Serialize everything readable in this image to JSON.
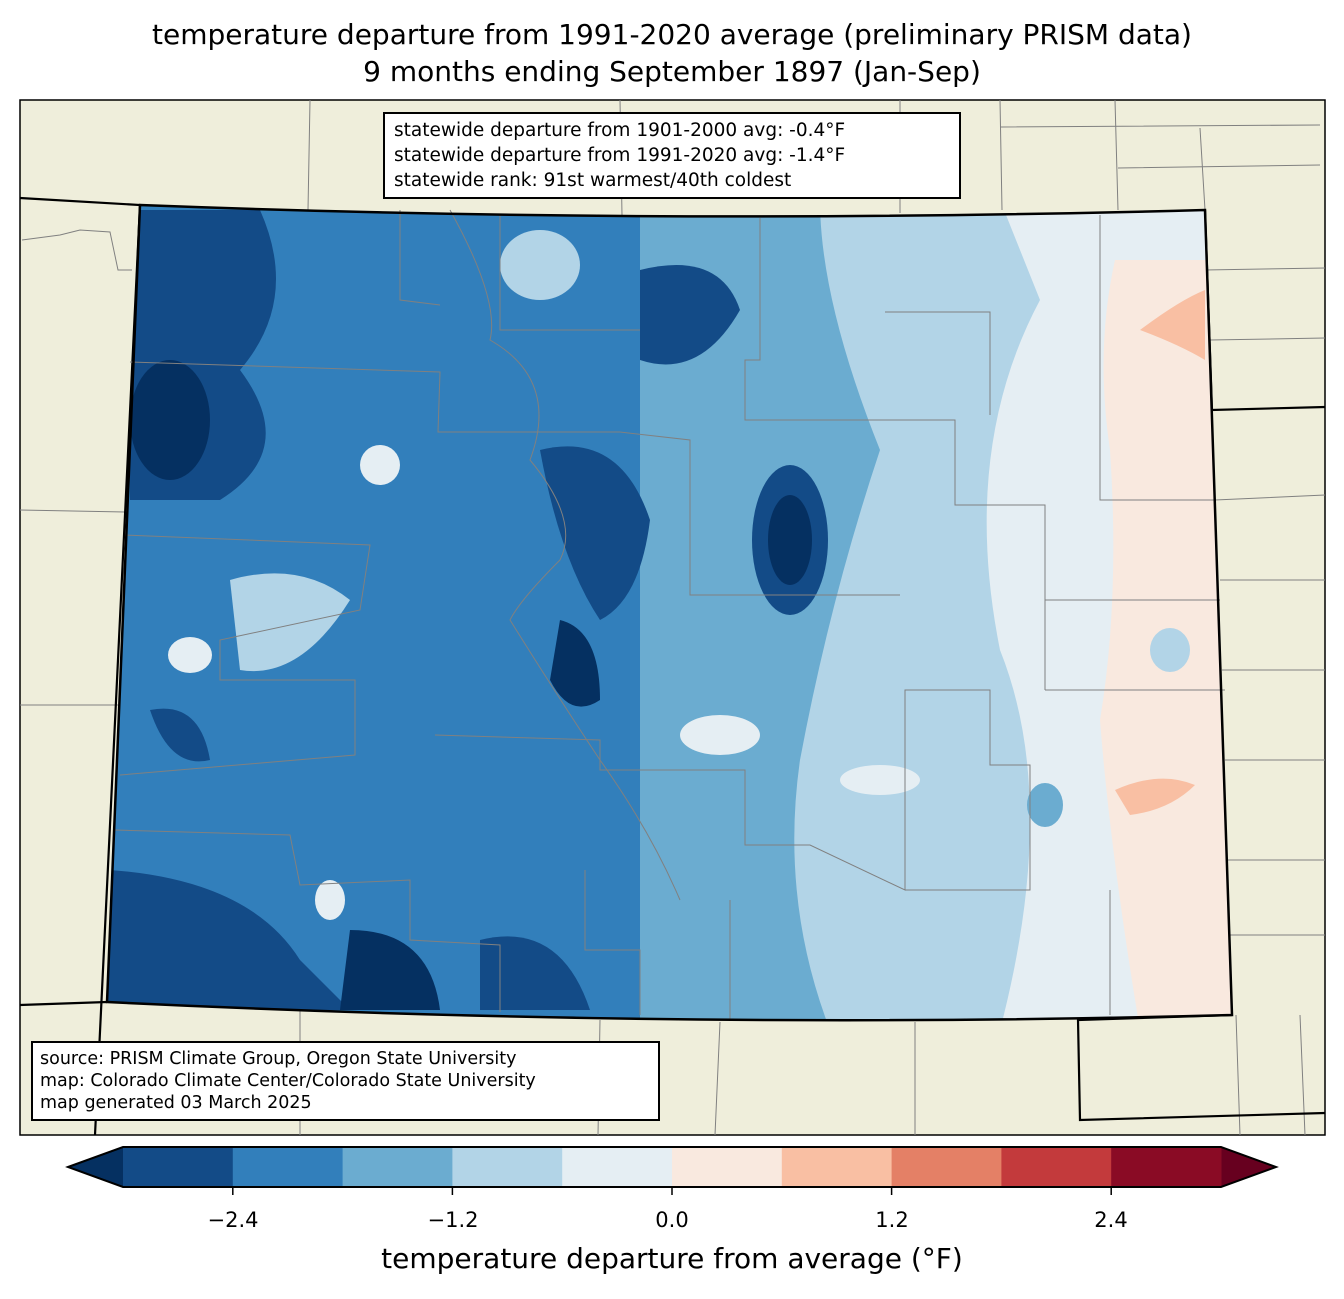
{
  "title": {
    "line1": "temperature departure from 1991-2020 average (preliminary PRISM data)",
    "line2": "9 months ending September 1897 (Jan-Sep)"
  },
  "stats": {
    "line1": "statewide departure from 1901-2000 avg: -0.4°F",
    "line2": "statewide departure from 1991-2020 avg: -1.4°F",
    "line3": "statewide rank: 91st warmest/40th coldest"
  },
  "source": {
    "line1": "source: PRISM Climate Group, Oregon State University",
    "line2": "map: Colorado Climate Center/Colorado State University",
    "line3": "map generated 03 March 2025"
  },
  "colorbar": {
    "label": "temperature departure from average (°F)",
    "levels": [
      -3.0,
      -2.4,
      -1.8,
      -1.2,
      -0.6,
      0.0,
      0.6,
      1.2,
      1.8,
      2.4,
      3.0
    ],
    "colors": [
      "#134b87",
      "#327fbb",
      "#6bacd0",
      "#b2d4e7",
      "#e5eef3",
      "#f9e9df",
      "#f9bfa3",
      "#e48066",
      "#c33a3c",
      "#8a0b25"
    ],
    "under_color": "#053061",
    "over_color": "#67001f",
    "ticks": [
      "−2.4",
      "−1.2",
      "0.0",
      "1.2",
      "2.4"
    ]
  },
  "colors": {
    "land": "#efeedb",
    "county_line": "#808080"
  }
}
